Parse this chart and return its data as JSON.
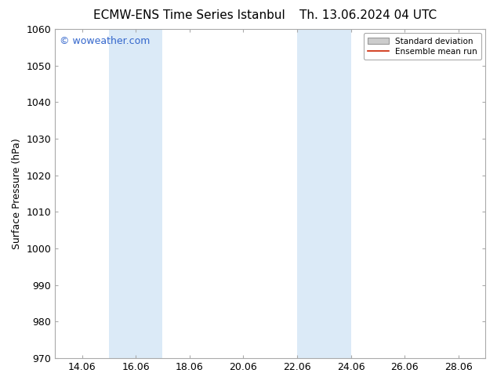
{
  "title_left": "ECMW-ENS Time Series Istanbul",
  "title_right": "Th. 13.06.2024 04 UTC",
  "ylabel": "Surface Pressure (hPa)",
  "ylim": [
    970,
    1060
  ],
  "yticks": [
    970,
    980,
    990,
    1000,
    1010,
    1020,
    1030,
    1040,
    1050,
    1060
  ],
  "xtick_labels": [
    "14.06",
    "16.06",
    "18.06",
    "20.06",
    "22.06",
    "24.06",
    "26.06",
    "28.06"
  ],
  "xtick_positions": [
    1,
    3,
    5,
    7,
    9,
    11,
    13,
    15
  ],
  "xlim": [
    0,
    16
  ],
  "shaded_bands": [
    {
      "x_start": 2.0,
      "x_end": 4.0
    },
    {
      "x_start": 9.0,
      "x_end": 11.0
    }
  ],
  "band_color": "#dbeaf7",
  "background_color": "#ffffff",
  "plot_bg_color": "#ffffff",
  "spine_color": "#aaaaaa",
  "watermark_text": "© woweather.com",
  "watermark_color": "#3366cc",
  "legend_std_dev_color": "#cccccc",
  "legend_std_dev_edge": "#999999",
  "legend_mean_run_color": "#cc2200",
  "title_fontsize": 11,
  "axis_fontsize": 9,
  "tick_fontsize": 9,
  "watermark_fontsize": 9
}
